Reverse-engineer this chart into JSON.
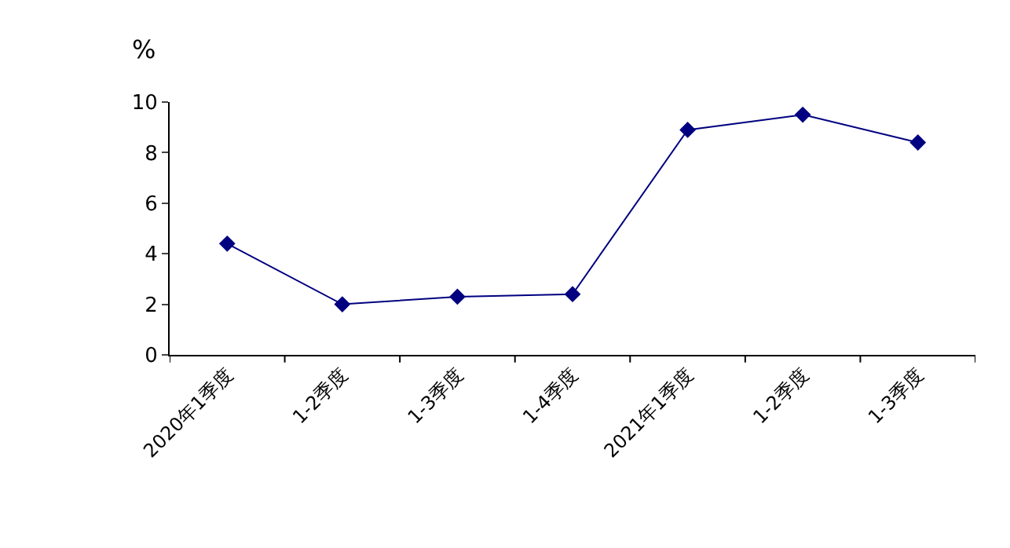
{
  "chart_data": {
    "type": "line",
    "ylabel": "%",
    "categories": [
      "2020年1季度",
      "1-2季度",
      "1-3季度",
      "1-4季度",
      "2021年1季度",
      "1-2季度",
      "1-3季度"
    ],
    "series": [
      {
        "color": "#000080",
        "values": [
          4.4,
          2.0,
          2.3,
          2.4,
          8.9,
          9.5,
          8.4
        ]
      }
    ],
    "ylim": [
      0,
      10
    ],
    "yticks": [
      0,
      2,
      4,
      6,
      8,
      10
    ],
    "marker": "diamond",
    "line_style": "solid"
  }
}
